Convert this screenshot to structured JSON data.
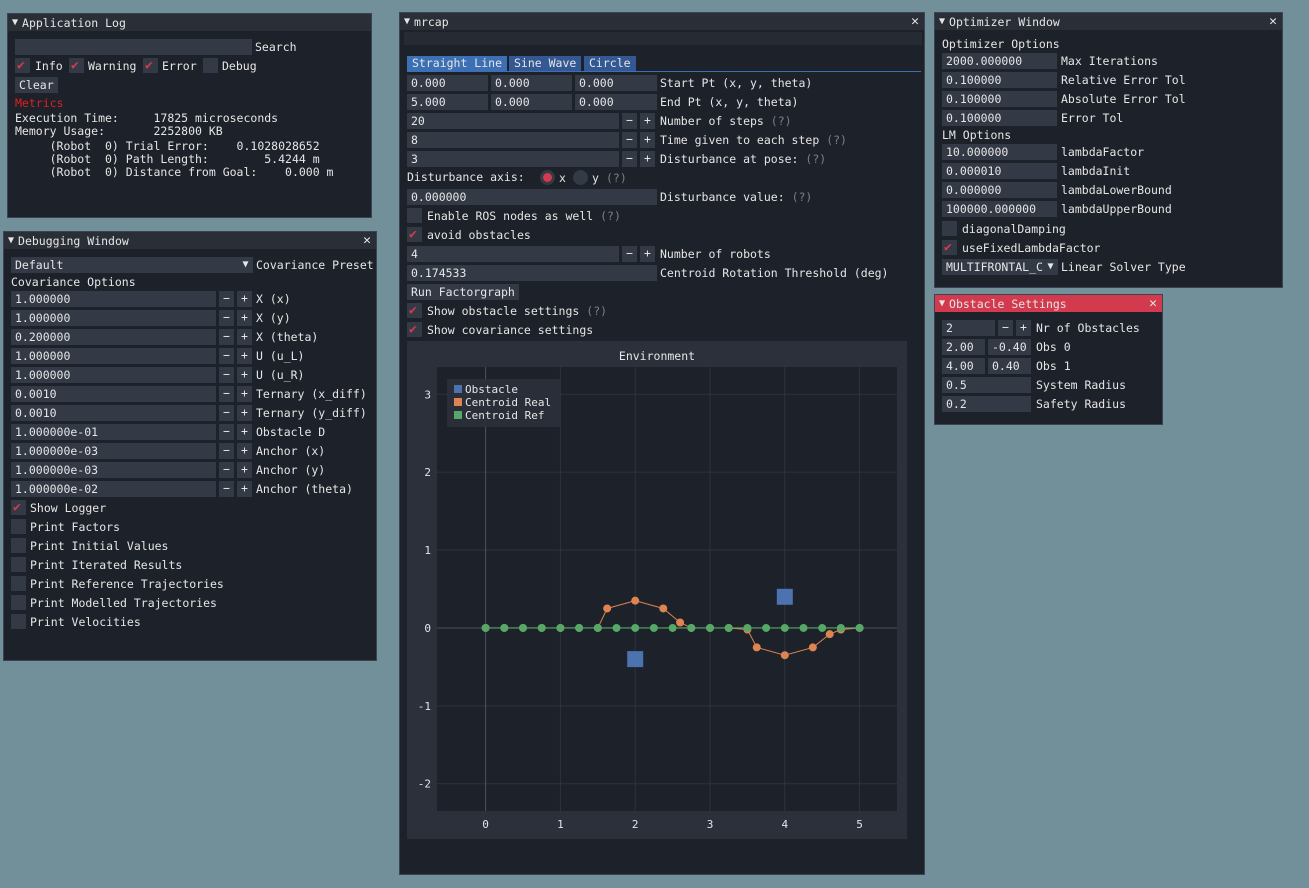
{
  "app_log": {
    "title": "Application Log",
    "search_label": "Search",
    "search_value": "",
    "filters": [
      {
        "label": "Info",
        "checked": true
      },
      {
        "label": "Warning",
        "checked": true
      },
      {
        "label": "Error",
        "checked": true
      },
      {
        "label": "Debug",
        "checked": false
      }
    ],
    "clear_label": "Clear",
    "metrics_label": "Metrics",
    "lines": [
      "Execution Time:     17825 microseconds",
      "Memory Usage:       2252800 KB",
      "     (Robot  0) Trial Error:    0.1028028652",
      "     (Robot  0) Path Length:        5.4244 m",
      "     (Robot  0) Distance from Goal:    0.000 m"
    ]
  },
  "debug": {
    "title": "Debugging Window",
    "preset_value": "Default",
    "preset_label": "Covariance Preset",
    "section": "Covariance Options",
    "rows": [
      {
        "value": "1.000000",
        "label": "X (x)"
      },
      {
        "value": "1.000000",
        "label": "X (y)"
      },
      {
        "value": "0.200000",
        "label": "X (theta)"
      },
      {
        "value": "1.000000",
        "label": "U (u_L)"
      },
      {
        "value": "1.000000",
        "label": "U (u_R)"
      },
      {
        "value": "0.0010",
        "label": "Ternary (x_diff)"
      },
      {
        "value": "0.0010",
        "label": "Ternary (y_diff)"
      },
      {
        "value": "1.000000e-01",
        "label": "Obstacle D"
      },
      {
        "value": "1.000000e-03",
        "label": "Anchor (x)"
      },
      {
        "value": "1.000000e-03",
        "label": "Anchor (y)"
      },
      {
        "value": "1.000000e-02",
        "label": "Anchor (theta)"
      }
    ],
    "checks": [
      {
        "label": "Show Logger",
        "checked": true
      },
      {
        "label": "Print Factors",
        "checked": false
      },
      {
        "label": "Print Initial Values",
        "checked": false
      },
      {
        "label": "Print Iterated Results",
        "checked": false
      },
      {
        "label": "Print Reference Trajectories",
        "checked": false
      },
      {
        "label": "Print Modelled Trajectories",
        "checked": false
      },
      {
        "label": "Print Velocities",
        "checked": false
      }
    ]
  },
  "mrcap": {
    "title": "mrcap",
    "tabs": [
      "Straight Line",
      "Sine Wave",
      "Circle"
    ],
    "start": {
      "values": [
        "0.000",
        "0.000",
        "0.000"
      ],
      "label": "Start Pt (x, y, theta)"
    },
    "end": {
      "values": [
        "5.000",
        "0.000",
        "0.000"
      ],
      "label": "End Pt (x, y, theta)"
    },
    "steps": {
      "value": "20",
      "label": "Number of steps",
      "help": "(?)"
    },
    "time": {
      "value": "8",
      "label": "Time given to each step",
      "help": "(?)"
    },
    "dist_pose": {
      "value": "3",
      "label": "Disturbance at pose:",
      "help": "(?)"
    },
    "axis": {
      "label": "Disturbance axis:",
      "opt_x": "x",
      "opt_y": "y",
      "help": "(?)"
    },
    "dist_value": {
      "value": "0.000000",
      "label": "Disturbance value:",
      "help": "(?)"
    },
    "ros": {
      "label": "Enable ROS nodes as well",
      "help": "(?)"
    },
    "avoid": {
      "label": "avoid obstacles"
    },
    "robots": {
      "value": "4",
      "label": "Number of robots"
    },
    "centroid": {
      "value": "0.174533",
      "label": "Centroid Rotation Threshold (deg)"
    },
    "run_label": "Run Factorgraph",
    "show_obs": {
      "label": "Show obstacle settings",
      "help": "(?)"
    },
    "show_cov": {
      "label": "Show covariance settings"
    }
  },
  "optimizer": {
    "title": "Optimizer Window",
    "section1": "Optimizer Options",
    "rows1": [
      {
        "value": "2000.000000",
        "label": "Max Iterations"
      },
      {
        "value": "0.100000",
        "label": "Relative Error Tol"
      },
      {
        "value": "0.100000",
        "label": "Absolute Error Tol"
      },
      {
        "value": "0.100000",
        "label": "Error Tol"
      }
    ],
    "section2": "LM Options",
    "rows2": [
      {
        "value": "10.000000",
        "label": "lambdaFactor"
      },
      {
        "value": "0.000010",
        "label": "lambdaInit"
      },
      {
        "value": "0.000000",
        "label": "lambdaLowerBound"
      },
      {
        "value": "100000.000000",
        "label": "lambdaUpperBound"
      }
    ],
    "diag": {
      "label": "diagonalDamping",
      "checked": false
    },
    "fixed": {
      "label": "useFixedLambdaFactor",
      "checked": true
    },
    "solver_value": "MULTIFRONTAL_C",
    "solver_label": "Linear Solver Type"
  },
  "obstacle": {
    "title": "Obstacle Settings",
    "nr_value": "2",
    "nr_label": "Nr of Obstacles",
    "obs": [
      {
        "x": "2.00",
        "y": "-0.40",
        "label": "Obs 0"
      },
      {
        "x": "4.00",
        "y": "0.40",
        "label": "Obs 1"
      }
    ],
    "sys_value": "0.5",
    "sys_label": "System Radius",
    "safe_value": "0.2",
    "safe_label": "Safety Radius"
  },
  "chart_data": {
    "type": "scatter",
    "title": "Environment",
    "xlim": [
      -0.65,
      5.5
    ],
    "ylim": [
      -2.35,
      3.35
    ],
    "xticks": [
      0,
      1,
      2,
      3,
      4,
      5
    ],
    "yticks": [
      -2,
      -1,
      0,
      1,
      2,
      3
    ],
    "grid": true,
    "legend": "top-left",
    "colors": {
      "obstacle": "#4c72b0",
      "real": "#dd8452",
      "ref": "#55a868"
    },
    "series": [
      {
        "name": "Obstacle",
        "x": [
          2,
          4
        ],
        "y": [
          -0.4,
          0.4
        ]
      },
      {
        "name": "Centroid Real",
        "x": [
          0,
          0.25,
          0.5,
          0.75,
          1,
          1.25,
          1.5,
          1.625,
          2,
          2.375,
          2.6,
          2.75,
          3,
          3.25,
          3.5,
          3.625,
          4,
          4.375,
          4.6,
          4.75,
          5
        ],
        "y": [
          0,
          0,
          0,
          0,
          0,
          0,
          0,
          0.25,
          0.35,
          0.25,
          0.07,
          0,
          0,
          0,
          -0.02,
          -0.25,
          -0.35,
          -0.25,
          -0.08,
          -0.02,
          0
        ]
      },
      {
        "name": "Centroid Ref",
        "x": [
          0,
          0.25,
          0.5,
          0.75,
          1,
          1.25,
          1.5,
          1.75,
          2,
          2.25,
          2.5,
          2.75,
          3,
          3.25,
          3.5,
          3.75,
          4,
          4.25,
          4.5,
          4.75,
          5
        ],
        "y": [
          0,
          0,
          0,
          0,
          0,
          0,
          0,
          0,
          0,
          0,
          0,
          0,
          0,
          0,
          0,
          0,
          0,
          0,
          0,
          0,
          0
        ]
      }
    ]
  }
}
